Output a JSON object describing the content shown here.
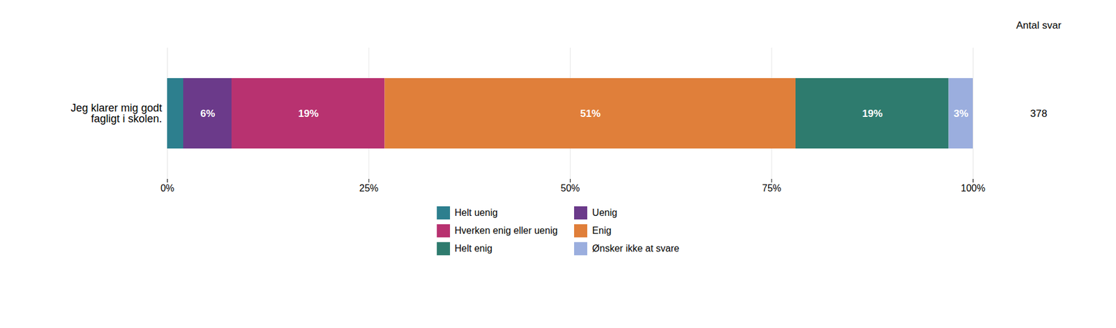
{
  "chart_data": {
    "type": "bar",
    "orientation": "horizontal",
    "stacked": true,
    "categories": [
      "Jeg klarer mig godt\nfagligt i skolen."
    ],
    "series": [
      {
        "name": "Helt uenig",
        "color": "#2d7f8e",
        "values": [
          2
        ]
      },
      {
        "name": "Uenig",
        "color": "#6b3a8a",
        "values": [
          6
        ],
        "value_labels": [
          "6%"
        ]
      },
      {
        "name": "Hverken enig eller uenig",
        "color": "#b83270",
        "values": [
          19
        ],
        "value_labels": [
          "19%"
        ]
      },
      {
        "name": "Enig",
        "color": "#e07f3a",
        "values": [
          51
        ],
        "value_labels": [
          "51%"
        ]
      },
      {
        "name": "Helt enig",
        "color": "#2e7b6e",
        "values": [
          19
        ],
        "value_labels": [
          "19%"
        ]
      },
      {
        "name": "Ønsker ikke at svare",
        "color": "#9baede",
        "values": [
          3
        ],
        "value_labels": [
          "3%"
        ]
      }
    ],
    "data_labels": true,
    "xlim": [
      0,
      100
    ],
    "xticks": [
      {
        "value": 0,
        "label": "0%"
      },
      {
        "value": 25,
        "label": "25%"
      },
      {
        "value": 50,
        "label": "50%"
      },
      {
        "value": 75,
        "label": "75%"
      },
      {
        "value": 100,
        "label": "100%"
      }
    ],
    "grid": true,
    "legend": "bottom",
    "count_label": "Antal svar",
    "counts": [
      378
    ]
  }
}
